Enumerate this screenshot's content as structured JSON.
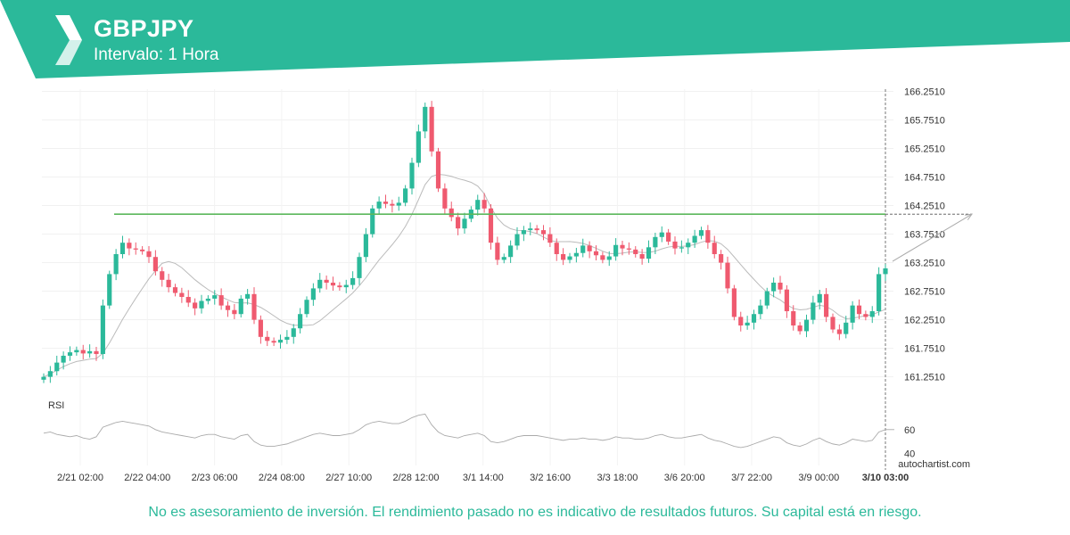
{
  "header": {
    "symbol": "GBPJPY",
    "interval": "Intervalo: 1 Hora",
    "brand_color": "#2bb99a"
  },
  "chart_data": {
    "type": "candlestick",
    "title": "GBPJPY",
    "price_axis": {
      "ticks": [
        "166.2510",
        "165.7510",
        "165.2510",
        "164.7510",
        "164.2510",
        "163.7510",
        "163.2510",
        "162.7510",
        "162.2510",
        "161.7510",
        "161.2510"
      ],
      "range": [
        161.01,
        166.29
      ]
    },
    "time_axis": {
      "ticks": [
        "2/21 02:00",
        "2/22 04:00",
        "2/23 06:00",
        "2/24 08:00",
        "2/27 10:00",
        "2/28 12:00",
        "3/1 14:00",
        "3/2 16:00",
        "3/3 18:00",
        "3/6 20:00",
        "3/7 22:00",
        "3/9 00:00"
      ],
      "current": "3/10 03:00"
    },
    "series": [
      {
        "name": "GBPJPY",
        "close": [
          161.25,
          161.35,
          161.5,
          161.62,
          161.68,
          161.72,
          161.66,
          161.7,
          161.65,
          162.5,
          163.05,
          163.4,
          163.6,
          163.5,
          163.48,
          163.45,
          163.35,
          163.1,
          162.95,
          162.82,
          162.72,
          162.65,
          162.55,
          162.45,
          162.58,
          162.62,
          162.68,
          162.5,
          162.42,
          162.35,
          162.62,
          162.7,
          162.25,
          161.95,
          161.88,
          161.85,
          161.9,
          161.95,
          162.1,
          162.35,
          162.6,
          162.8,
          162.95,
          162.9,
          162.85,
          162.82,
          162.86,
          162.98,
          163.35,
          163.75,
          164.2,
          164.32,
          164.28,
          164.25,
          164.3,
          164.55,
          165.0,
          165.55,
          165.98,
          165.2,
          164.55,
          164.2,
          164.05,
          163.85,
          164.02,
          164.18,
          164.35,
          164.2,
          163.6,
          163.3,
          163.35,
          163.55,
          163.75,
          163.82,
          163.85,
          163.82,
          163.75,
          163.6,
          163.4,
          163.3,
          163.36,
          163.42,
          163.55,
          163.45,
          163.38,
          163.3,
          163.36,
          163.56,
          163.5,
          163.48,
          163.4,
          163.32,
          163.52,
          163.7,
          163.78,
          163.62,
          163.5,
          163.52,
          163.6,
          163.72,
          163.82,
          163.6,
          163.4,
          163.25,
          162.8,
          162.3,
          162.15,
          162.2,
          162.35,
          162.5,
          162.75,
          162.9,
          162.78,
          162.4,
          162.15,
          162.05,
          162.25,
          162.55,
          162.7,
          162.3,
          162.08,
          162.0,
          162.2,
          162.5,
          162.35,
          162.3,
          162.4,
          163.05,
          163.15
        ],
        "rsi": [
          57,
          58,
          56,
          55,
          54,
          55,
          53,
          52,
          54,
          62,
          64,
          66,
          67,
          66,
          65,
          64,
          63,
          60,
          58,
          57,
          56,
          55,
          54,
          53,
          55,
          56,
          56,
          54,
          53,
          52,
          55,
          56,
          50,
          47,
          46,
          46,
          47,
          48,
          50,
          52,
          54,
          56,
          57,
          56,
          55,
          55,
          56,
          57,
          60,
          64,
          66,
          67,
          66,
          65,
          65,
          67,
          70,
          72,
          73,
          64,
          58,
          55,
          54,
          53,
          55,
          56,
          57,
          55,
          50,
          49,
          50,
          52,
          54,
          55,
          55,
          55,
          54,
          53,
          52,
          51,
          52,
          52,
          53,
          52,
          52,
          51,
          52,
          54,
          53,
          53,
          52,
          52,
          53,
          55,
          56,
          54,
          53,
          53,
          54,
          55,
          56,
          53,
          51,
          50,
          48,
          46,
          45,
          46,
          48,
          50,
          52,
          54,
          53,
          49,
          47,
          46,
          48,
          51,
          53,
          50,
          48,
          47,
          49,
          52,
          51,
          50,
          51,
          58,
          60
        ]
      },
      {
        "name": "RSI",
        "ticks": [
          "60",
          "40"
        ],
        "range": [
          30,
          80
        ]
      }
    ],
    "resistance_level": 164.1,
    "projection_target": 164.1,
    "labels": {
      "rsi": "RSI",
      "watermark": "autochartist.com"
    },
    "colors": {
      "up": "#2bb99a",
      "down": "#ef5a6f",
      "resistance": "#5cb85c",
      "ma": "#bbbbbb",
      "rsi": "#aaaaaa"
    },
    "grid": true
  },
  "disclaimer": "No es asesoramiento de inversión. El rendimiento pasado no es indicativo de resultados futuros. Su capital está en riesgo."
}
